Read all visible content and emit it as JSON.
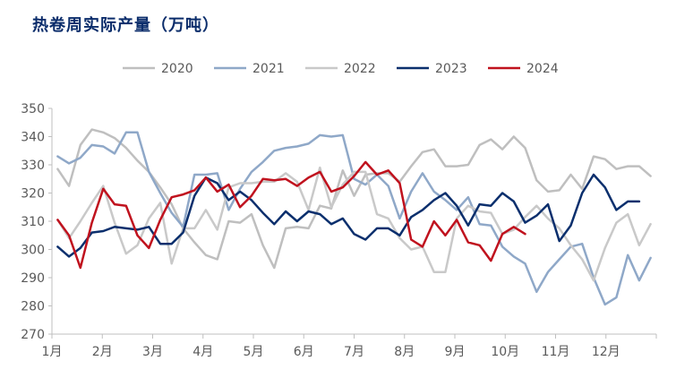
{
  "chart_data": {
    "type": "line",
    "title": "热卷周实际产量（万吨）",
    "xlabel": "",
    "ylabel": "",
    "ylim": [
      270,
      350
    ],
    "yticks": [
      270,
      280,
      290,
      300,
      310,
      320,
      330,
      340,
      350
    ],
    "month_labels": [
      "1月",
      "2月",
      "3月",
      "4月",
      "5月",
      "6月",
      "7月",
      "8月",
      "9月",
      "10月",
      "11月",
      "12月"
    ],
    "x_unit": "week of year",
    "grid": false,
    "legend_position": "top",
    "series": [
      {
        "name": "2020",
        "color": "#bfbfbf",
        "values": [
          328.5,
          322.5,
          337.0,
          342.5,
          341.5,
          339.5,
          336.0,
          331.5,
          327.5,
          322.0,
          316.0,
          307.5,
          302.5,
          298.0,
          296.5,
          310.0,
          309.5,
          312.5,
          301.5,
          293.5,
          307.5,
          308.0,
          307.5,
          315.5,
          314.5,
          328.0,
          319.0,
          326.5,
          327.0,
          327.0,
          324.0,
          329.5,
          334.5,
          335.5,
          329.5,
          329.5,
          330.0,
          337.0,
          339.0,
          335.5,
          340.0,
          336.0,
          324.5,
          320.5,
          321.0,
          326.5,
          321.5,
          333.0,
          332.0,
          328.5,
          329.5,
          329.5,
          326.0
        ]
      },
      {
        "name": "2021",
        "color": "#8fa8c8",
        "values": [
          333.0,
          330.5,
          332.5,
          337.0,
          336.5,
          334.0,
          341.5,
          341.5,
          327.5,
          320.0,
          313.0,
          308.0,
          326.5,
          326.5,
          327.0,
          314.0,
          321.5,
          327.5,
          331.0,
          335.0,
          336.0,
          336.5,
          337.5,
          340.5,
          340.0,
          340.5,
          325.0,
          323.0,
          326.5,
          322.5,
          311.0,
          320.5,
          327.0,
          320.5,
          317.5,
          314.0,
          318.5,
          309.0,
          308.5,
          301.0,
          297.5,
          295.0,
          285.0,
          292.0,
          296.5,
          301.0,
          302.0,
          290.0,
          280.5,
          283.0,
          298.0,
          289.0,
          297.0
        ]
      },
      {
        "name": "2022",
        "color": "#c9c9c9",
        "values": [
          310.5,
          304.0,
          310.0,
          316.5,
          322.5,
          309.5,
          298.5,
          301.5,
          311.0,
          316.5,
          295.0,
          307.5,
          307.5,
          314.0,
          307.0,
          322.0,
          323.5,
          323.5,
          324.0,
          324.0,
          327.0,
          324.0,
          314.0,
          329.0,
          315.0,
          323.0,
          327.5,
          327.5,
          312.5,
          311.0,
          304.0,
          300.0,
          301.0,
          292.0,
          292.0,
          311.0,
          315.5,
          313.5,
          313.0,
          305.5,
          307.0,
          311.5,
          315.5,
          311.0,
          307.5,
          301.5,
          296.5,
          289.0,
          300.5,
          309.5,
          312.5,
          301.5,
          309.0
        ]
      },
      {
        "name": "2023",
        "color": "#0b2f6d",
        "values": [
          301.0,
          297.5,
          300.5,
          306.0,
          306.5,
          308.0,
          307.5,
          307.0,
          308.0,
          302.0,
          302.0,
          306.0,
          319.0,
          325.5,
          323.5,
          317.5,
          320.5,
          317.5,
          313.0,
          309.0,
          313.5,
          310.0,
          313.5,
          312.5,
          309.0,
          311.0,
          305.5,
          303.5,
          307.5,
          307.5,
          305.0,
          311.5,
          314.0,
          317.5,
          320.0,
          315.5,
          308.5,
          316.0,
          315.5,
          320.0,
          317.0,
          309.5,
          312.0,
          316.0,
          303.0,
          308.5,
          320.0,
          326.5,
          322.0,
          314.0,
          317.0,
          317.0
        ]
      },
      {
        "name": "2024",
        "color": "#c0121e",
        "values": [
          310.5,
          305.0,
          293.5,
          309.5,
          321.5,
          316.0,
          315.5,
          305.0,
          300.5,
          310.5,
          318.5,
          319.5,
          321.0,
          325.5,
          320.5,
          323.0,
          315.0,
          319.0,
          325.0,
          324.5,
          325.0,
          322.5,
          325.5,
          327.5,
          320.5,
          322.0,
          326.0,
          331.0,
          326.5,
          328.0,
          323.5,
          303.5,
          301.0,
          310.0,
          305.0,
          310.5,
          302.5,
          301.5,
          296.0,
          305.5,
          308.0,
          305.5
        ]
      }
    ]
  }
}
